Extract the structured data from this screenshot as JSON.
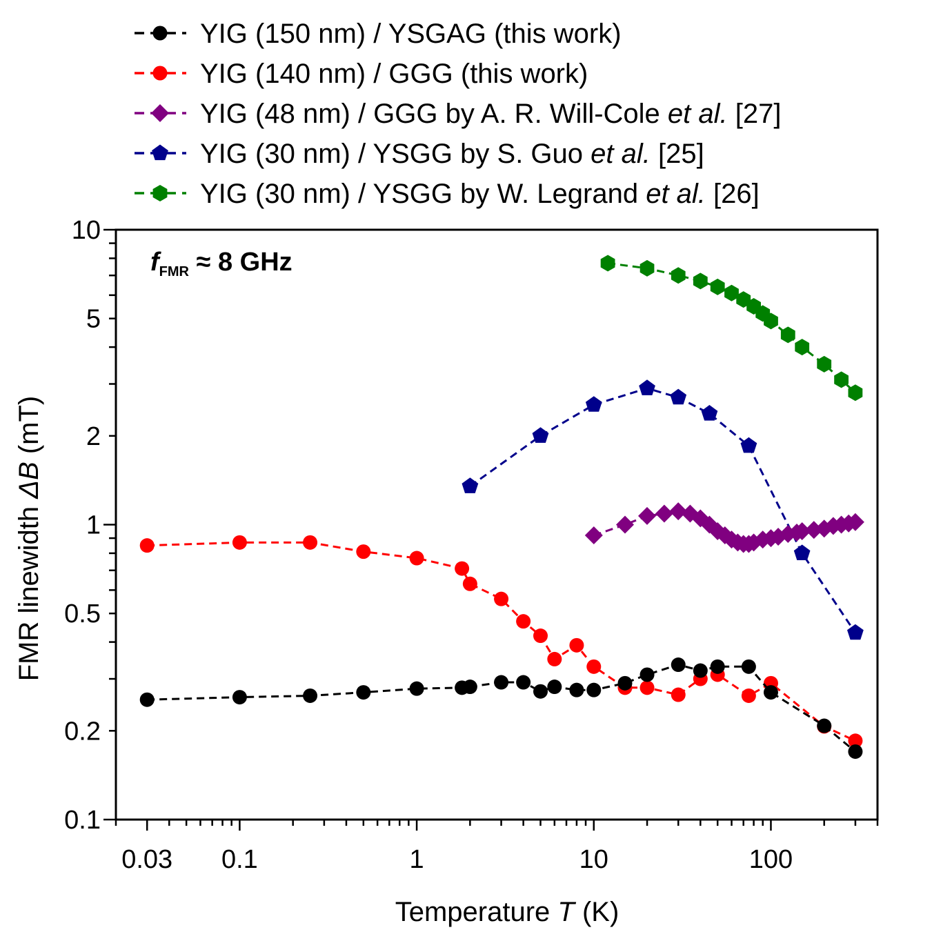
{
  "chart_data": {
    "type": "scatter",
    "xlabel": "Temperature T (K)",
    "xlabel_parts": [
      "Temperature ",
      "T",
      " (K)"
    ],
    "ylabel": "FMR linewidth ΔB (mT)",
    "ylabel_parts": [
      "FMR linewidth ",
      "ΔB",
      "  (mT)"
    ],
    "xscale": "log",
    "yscale": "log",
    "xlim": [
      0.02,
      400
    ],
    "ylim": [
      0.1,
      10
    ],
    "x_ticks": [
      0.03,
      0.1,
      1,
      10,
      100
    ],
    "x_tick_labels": [
      "0.03",
      "0.1",
      "1",
      "10",
      "100"
    ],
    "y_ticks": [
      0.1,
      0.2,
      0.5,
      1,
      2,
      5,
      10
    ],
    "y_tick_labels": [
      "0.1",
      "0.2",
      "0.5",
      "1",
      "2",
      "5",
      "10"
    ],
    "legend_position": "top, above plot",
    "annotation": {
      "f": "f",
      "sub": "FMR",
      "rest": "≈ 8 GHz"
    },
    "series": [
      {
        "name": "YIG (150 nm) / YSGAG (this work)",
        "label_parts": [
          {
            "t": "YIG (150 nm) / YSGAG (this work)",
            "i": false
          }
        ],
        "color": "#000000",
        "marker": "circle",
        "x": [
          0.03,
          0.1,
          0.25,
          0.5,
          1,
          1.8,
          2,
          3,
          4,
          5,
          6,
          8,
          10,
          15,
          20,
          30,
          40,
          50,
          75,
          100,
          200,
          300
        ],
        "y": [
          0.255,
          0.26,
          0.263,
          0.27,
          0.278,
          0.28,
          0.282,
          0.292,
          0.292,
          0.272,
          0.282,
          0.275,
          0.275,
          0.29,
          0.31,
          0.335,
          0.32,
          0.33,
          0.33,
          0.27,
          0.208,
          0.17
        ]
      },
      {
        "name": "YIG (140 nm) / GGG (this work)",
        "label_parts": [
          {
            "t": "YIG (140 nm) / GGG (this work)",
            "i": false
          }
        ],
        "color": "#ff0000",
        "marker": "circle",
        "x": [
          0.03,
          0.1,
          0.25,
          0.5,
          1,
          1.8,
          2,
          3,
          4,
          5,
          6,
          8,
          10,
          15,
          20,
          30,
          40,
          50,
          75,
          100,
          200,
          300
        ],
        "y": [
          0.85,
          0.87,
          0.87,
          0.81,
          0.77,
          0.71,
          0.63,
          0.56,
          0.47,
          0.42,
          0.35,
          0.39,
          0.33,
          0.28,
          0.28,
          0.265,
          0.3,
          0.31,
          0.263,
          0.29,
          0.207,
          0.185
        ]
      },
      {
        "name": "YIG (48 nm) / GGG by A. R. Will-Cole et al. [27]",
        "label_parts": [
          {
            "t": "YIG (48 nm) / GGG by A. R. Will-Cole ",
            "i": false
          },
          {
            "t": "et al.",
            "i": true
          },
          {
            "t": " [27]",
            "i": false
          }
        ],
        "color": "#800080",
        "marker": "diamond",
        "x": [
          10,
          15,
          20,
          25,
          30,
          35,
          40,
          45,
          50,
          55,
          60,
          65,
          70,
          75,
          80,
          90,
          100,
          110,
          125,
          140,
          150,
          175,
          200,
          225,
          250,
          275,
          300
        ],
        "y": [
          0.92,
          1.0,
          1.07,
          1.09,
          1.11,
          1.09,
          1.05,
          1.0,
          0.95,
          0.92,
          0.89,
          0.87,
          0.86,
          0.86,
          0.87,
          0.89,
          0.9,
          0.91,
          0.93,
          0.94,
          0.95,
          0.96,
          0.97,
          0.99,
          1.0,
          1.01,
          1.02
        ]
      },
      {
        "name": "YIG (30 nm) / YSGG by S. Guo et al. [25]",
        "label_parts": [
          {
            "t": "YIG (30 nm) / YSGG by S. Guo ",
            "i": false
          },
          {
            "t": "et al.",
            "i": true
          },
          {
            "t": " [25]",
            "i": false
          }
        ],
        "color": "#00008b",
        "marker": "pentagon",
        "x": [
          2,
          5,
          10,
          20,
          30,
          45,
          75,
          150,
          300
        ],
        "y": [
          1.35,
          2.0,
          2.55,
          2.9,
          2.7,
          2.38,
          1.85,
          0.8,
          0.43
        ]
      },
      {
        "name": "YIG (30 nm) / YSGG by W. Legrand et al. [26]",
        "label_parts": [
          {
            "t": "YIG (30 nm) / YSGG by W. Legrand ",
            "i": false
          },
          {
            "t": "et al.",
            "i": true
          },
          {
            "t": " [26]",
            "i": false
          }
        ],
        "color": "#008000",
        "marker": "hexagon",
        "x": [
          12,
          20,
          30,
          40,
          50,
          60,
          70,
          80,
          90,
          100,
          125,
          150,
          200,
          250,
          300
        ],
        "y": [
          7.7,
          7.4,
          7.0,
          6.7,
          6.4,
          6.1,
          5.8,
          5.5,
          5.2,
          4.9,
          4.4,
          4.0,
          3.5,
          3.1,
          2.8
        ]
      }
    ]
  }
}
